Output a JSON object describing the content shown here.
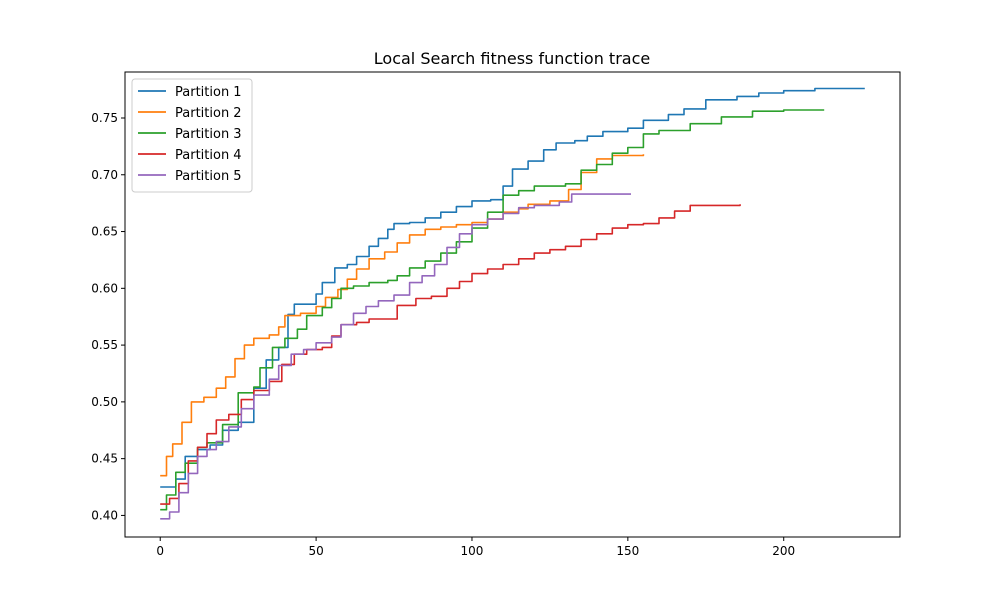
{
  "chart_data": {
    "type": "line",
    "title": "Local Search fitness function trace",
    "xlabel": "",
    "ylabel": "",
    "xlim": [
      -11.3,
      237.3
    ],
    "ylim": [
      0.381,
      0.7905
    ],
    "xticks": [
      0,
      50,
      100,
      150,
      200
    ],
    "yticks": [
      0.4,
      0.45,
      0.5,
      0.55,
      0.6,
      0.65,
      0.7,
      0.75
    ],
    "ytick_labels": [
      "0.40",
      "0.45",
      "0.50",
      "0.55",
      "0.60",
      "0.65",
      "0.70",
      "0.75"
    ],
    "legend_position": "top-left",
    "grid": false,
    "series": [
      {
        "name": "Partition 1",
        "color": "#1f77b4",
        "points": [
          [
            0,
            0.425
          ],
          [
            5,
            0.432
          ],
          [
            8,
            0.452
          ],
          [
            12,
            0.458
          ],
          [
            16,
            0.462
          ],
          [
            20,
            0.475
          ],
          [
            25,
            0.482
          ],
          [
            30,
            0.512
          ],
          [
            34,
            0.537
          ],
          [
            38,
            0.548
          ],
          [
            41,
            0.577
          ],
          [
            43,
            0.586
          ],
          [
            50,
            0.595
          ],
          [
            52,
            0.605
          ],
          [
            56,
            0.618
          ],
          [
            60,
            0.621
          ],
          [
            63,
            0.628
          ],
          [
            67,
            0.637
          ],
          [
            70,
            0.644
          ],
          [
            73,
            0.652
          ],
          [
            75,
            0.657
          ],
          [
            80,
            0.658
          ],
          [
            85,
            0.662
          ],
          [
            90,
            0.667
          ],
          [
            95,
            0.672
          ],
          [
            100,
            0.677
          ],
          [
            106,
            0.678
          ],
          [
            110,
            0.69
          ],
          [
            113,
            0.705
          ],
          [
            118,
            0.712
          ],
          [
            123,
            0.722
          ],
          [
            127,
            0.728
          ],
          [
            133,
            0.73
          ],
          [
            137,
            0.734
          ],
          [
            142,
            0.738
          ],
          [
            150,
            0.741
          ],
          [
            155,
            0.748
          ],
          [
            163,
            0.753
          ],
          [
            168,
            0.758
          ],
          [
            175,
            0.766
          ],
          [
            185,
            0.769
          ],
          [
            192,
            0.772
          ],
          [
            200,
            0.774
          ],
          [
            210,
            0.776
          ],
          [
            226,
            0.776
          ]
        ]
      },
      {
        "name": "Partition 2",
        "color": "#ff7f0e",
        "points": [
          [
            0,
            0.435
          ],
          [
            2,
            0.452
          ],
          [
            4,
            0.463
          ],
          [
            7,
            0.482
          ],
          [
            10,
            0.5
          ],
          [
            14,
            0.504
          ],
          [
            18,
            0.512
          ],
          [
            21,
            0.522
          ],
          [
            24,
            0.538
          ],
          [
            27,
            0.55
          ],
          [
            30,
            0.556
          ],
          [
            35,
            0.559
          ],
          [
            38,
            0.566
          ],
          [
            40,
            0.576
          ],
          [
            45,
            0.578
          ],
          [
            50,
            0.584
          ],
          [
            53,
            0.592
          ],
          [
            57,
            0.599
          ],
          [
            60,
            0.608
          ],
          [
            63,
            0.617
          ],
          [
            67,
            0.626
          ],
          [
            72,
            0.632
          ],
          [
            76,
            0.64
          ],
          [
            80,
            0.647
          ],
          [
            85,
            0.652
          ],
          [
            90,
            0.654
          ],
          [
            95,
            0.656
          ],
          [
            100,
            0.658
          ],
          [
            105,
            0.661
          ],
          [
            110,
            0.667
          ],
          [
            115,
            0.67
          ],
          [
            118,
            0.674
          ],
          [
            125,
            0.677
          ],
          [
            131,
            0.687
          ],
          [
            135,
            0.702
          ],
          [
            140,
            0.714
          ],
          [
            145,
            0.717
          ],
          [
            155,
            0.718
          ]
        ]
      },
      {
        "name": "Partition 3",
        "color": "#2ca02c",
        "points": [
          [
            0,
            0.405
          ],
          [
            2,
            0.418
          ],
          [
            5,
            0.438
          ],
          [
            8,
            0.446
          ],
          [
            12,
            0.46
          ],
          [
            15,
            0.464
          ],
          [
            20,
            0.48
          ],
          [
            25,
            0.508
          ],
          [
            30,
            0.513
          ],
          [
            32,
            0.53
          ],
          [
            36,
            0.548
          ],
          [
            40,
            0.556
          ],
          [
            44,
            0.564
          ],
          [
            47,
            0.576
          ],
          [
            52,
            0.583
          ],
          [
            55,
            0.591
          ],
          [
            58,
            0.6
          ],
          [
            62,
            0.602
          ],
          [
            67,
            0.605
          ],
          [
            73,
            0.607
          ],
          [
            76,
            0.611
          ],
          [
            80,
            0.618
          ],
          [
            85,
            0.624
          ],
          [
            90,
            0.631
          ],
          [
            95,
            0.641
          ],
          [
            100,
            0.653
          ],
          [
            105,
            0.667
          ],
          [
            110,
            0.682
          ],
          [
            115,
            0.686
          ],
          [
            120,
            0.69
          ],
          [
            130,
            0.692
          ],
          [
            135,
            0.704
          ],
          [
            140,
            0.709
          ],
          [
            145,
            0.719
          ],
          [
            150,
            0.724
          ],
          [
            155,
            0.736
          ],
          [
            160,
            0.739
          ],
          [
            170,
            0.745
          ],
          [
            180,
            0.751
          ],
          [
            190,
            0.756
          ],
          [
            200,
            0.757
          ],
          [
            213,
            0.757
          ]
        ]
      },
      {
        "name": "Partition 4",
        "color": "#d62728",
        "points": [
          [
            0,
            0.41
          ],
          [
            3,
            0.415
          ],
          [
            6,
            0.428
          ],
          [
            9,
            0.448
          ],
          [
            12,
            0.46
          ],
          [
            15,
            0.472
          ],
          [
            18,
            0.484
          ],
          [
            22,
            0.489
          ],
          [
            26,
            0.502
          ],
          [
            30,
            0.51
          ],
          [
            35,
            0.518
          ],
          [
            39,
            0.533
          ],
          [
            43,
            0.542
          ],
          [
            47,
            0.546
          ],
          [
            52,
            0.548
          ],
          [
            55,
            0.558
          ],
          [
            58,
            0.568
          ],
          [
            63,
            0.57
          ],
          [
            67,
            0.573
          ],
          [
            72,
            0.573
          ],
          [
            76,
            0.585
          ],
          [
            82,
            0.591
          ],
          [
            87,
            0.593
          ],
          [
            92,
            0.6
          ],
          [
            96,
            0.606
          ],
          [
            100,
            0.613
          ],
          [
            105,
            0.617
          ],
          [
            110,
            0.621
          ],
          [
            115,
            0.626
          ],
          [
            120,
            0.631
          ],
          [
            125,
            0.634
          ],
          [
            130,
            0.637
          ],
          [
            135,
            0.643
          ],
          [
            140,
            0.648
          ],
          [
            145,
            0.653
          ],
          [
            150,
            0.656
          ],
          [
            155,
            0.657
          ],
          [
            160,
            0.662
          ],
          [
            165,
            0.668
          ],
          [
            170,
            0.673
          ],
          [
            186,
            0.674
          ]
        ]
      },
      {
        "name": "Partition 5",
        "color": "#9467bd",
        "points": [
          [
            0,
            0.397
          ],
          [
            3,
            0.403
          ],
          [
            6,
            0.42
          ],
          [
            9,
            0.437
          ],
          [
            12,
            0.452
          ],
          [
            15,
            0.458
          ],
          [
            18,
            0.465
          ],
          [
            22,
            0.478
          ],
          [
            26,
            0.494
          ],
          [
            30,
            0.506
          ],
          [
            35,
            0.52
          ],
          [
            38,
            0.532
          ],
          [
            42,
            0.542
          ],
          [
            46,
            0.546
          ],
          [
            50,
            0.552
          ],
          [
            55,
            0.557
          ],
          [
            58,
            0.568
          ],
          [
            62,
            0.578
          ],
          [
            66,
            0.584
          ],
          [
            70,
            0.589
          ],
          [
            75,
            0.594
          ],
          [
            80,
            0.605
          ],
          [
            84,
            0.611
          ],
          [
            88,
            0.621
          ],
          [
            92,
            0.636
          ],
          [
            96,
            0.648
          ],
          [
            100,
            0.656
          ],
          [
            105,
            0.661
          ],
          [
            110,
            0.666
          ],
          [
            115,
            0.671
          ],
          [
            120,
            0.673
          ],
          [
            128,
            0.676
          ],
          [
            132,
            0.683
          ],
          [
            151,
            0.683
          ]
        ]
      }
    ]
  }
}
